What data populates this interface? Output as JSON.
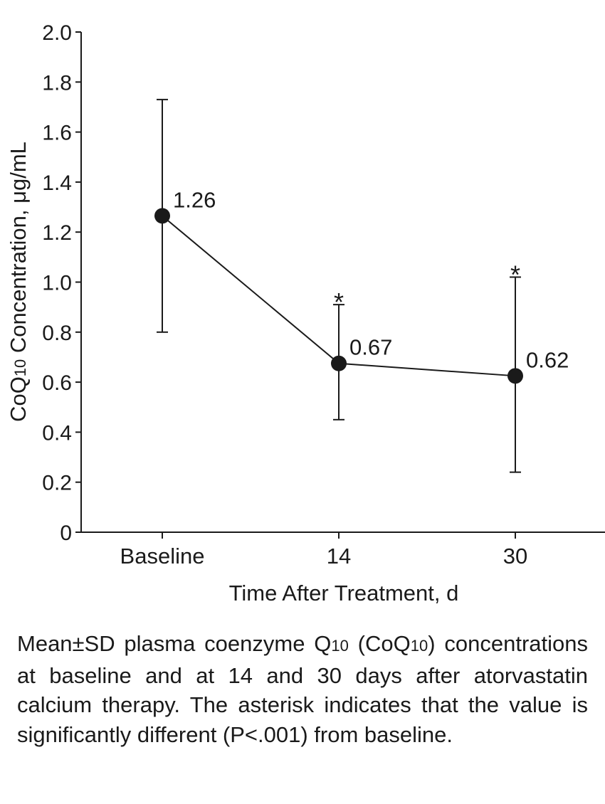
{
  "chart_data": {
    "type": "line",
    "title": "",
    "xlabel": "Time After Treatment, d",
    "ylabel_main": "CoQ",
    "ylabel_sub": "10",
    "ylabel_rest": " Concentration, μg/mL",
    "categories": [
      "Baseline",
      "14",
      "30"
    ],
    "series": [
      {
        "name": "CoQ10",
        "values": [
          1.265,
          0.675,
          0.625
        ],
        "labels": [
          "1.26",
          "0.67",
          "0.62"
        ],
        "error_low": [
          0.8,
          0.45,
          0.24
        ],
        "error_high": [
          1.73,
          0.91,
          1.02
        ],
        "significant": [
          false,
          true,
          true
        ]
      }
    ],
    "ylim": [
      0,
      2.0
    ],
    "yticks": [
      0,
      0.2,
      0.4,
      0.6,
      0.8,
      1.0,
      1.2,
      1.4,
      1.6,
      1.8,
      2.0
    ],
    "ytick_labels": [
      "0",
      "0.2",
      "0.4",
      "0.6",
      "0.8",
      "1.0",
      "1.2",
      "1.4",
      "1.6",
      "1.8",
      "2.0"
    ],
    "significance_marker": "*",
    "grid": false,
    "line_color": "#1a1a1a"
  },
  "caption": {
    "part1": "Mean±SD plasma coenzyme Q",
    "sub1": "10",
    "part2": " (CoQ",
    "sub2": "10",
    "part3": ") concentrations at baseline and at 14 and 30 days after atorvastatin calcium therapy. The asterisk indicates that the value is significantly different (P<.001) from baseline."
  }
}
